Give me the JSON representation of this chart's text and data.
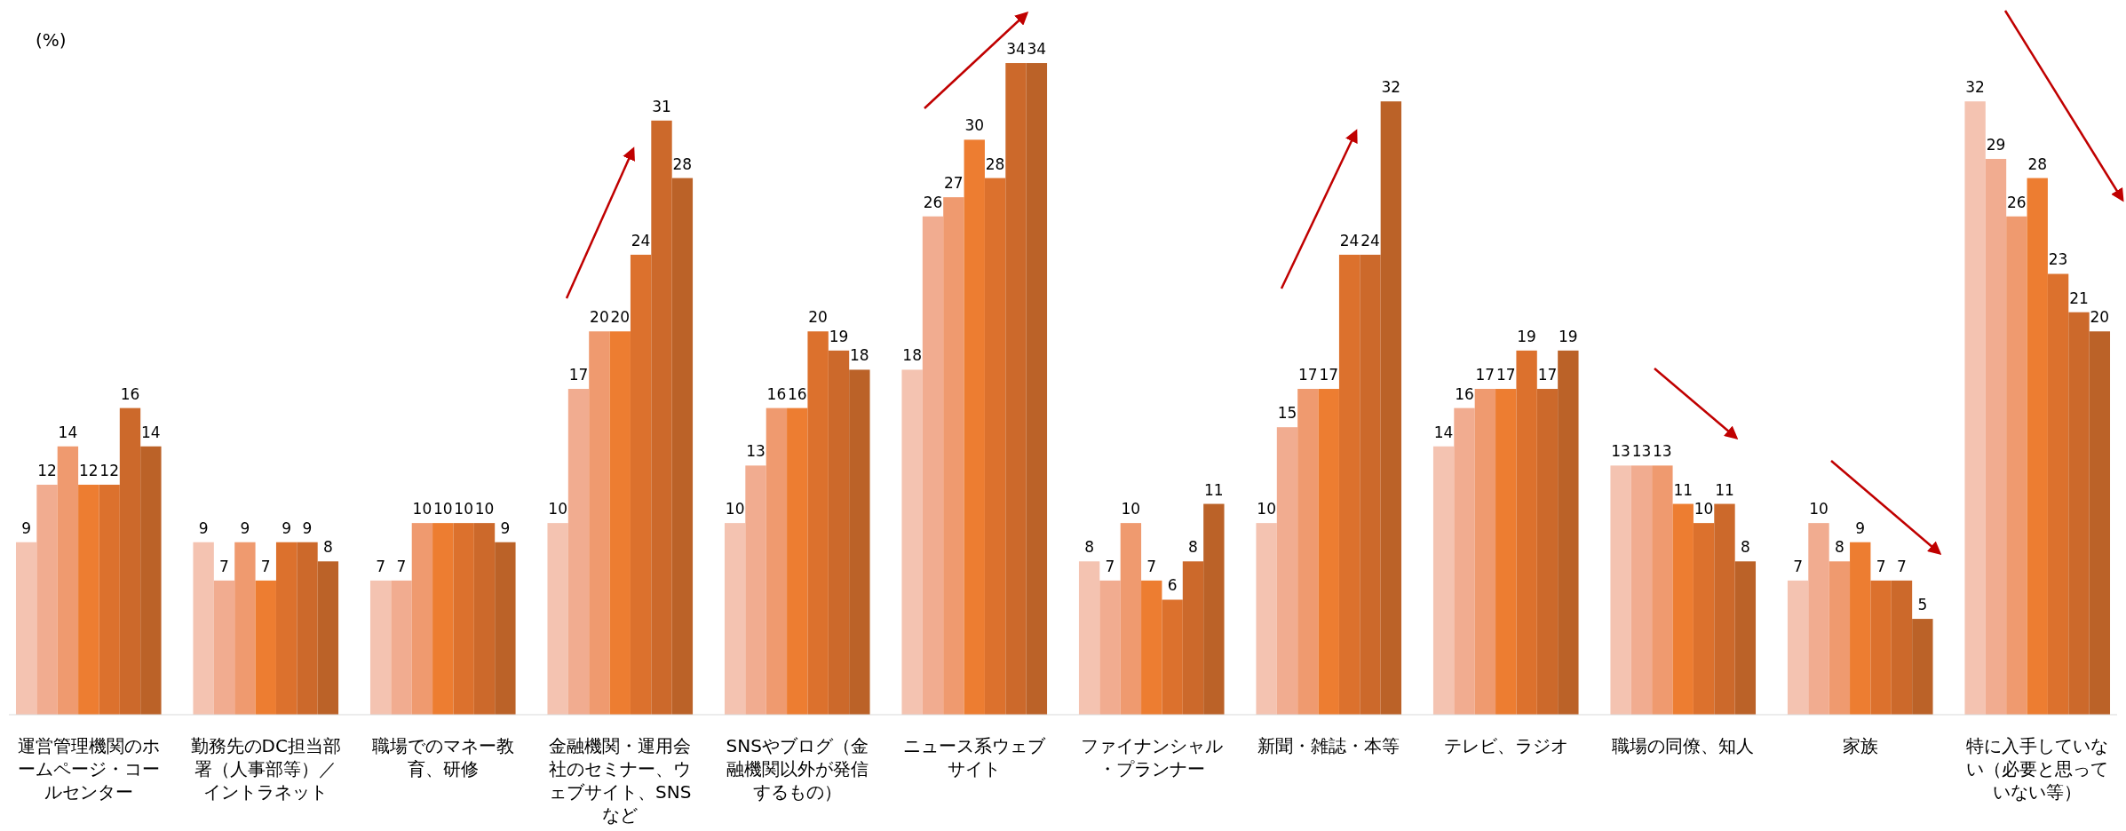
{
  "chart_data": {
    "type": "bar",
    "ylabel": "(%)",
    "categories": [
      "運営管理機関のホームページ・コールセンター",
      "勤務先のDC担当部署（人事部等）／イントラネット",
      "職場でのマネー教育、研修",
      "金融機関・運用会社のセミナー、ウェブサイト、SNSなど",
      "SNSやブログ（金融機関以外が発信するもの）",
      "ニュース系ウェブサイト",
      "ファイナンシャル・プランナー",
      "新聞・雑誌・本等",
      "テレビ、ラジオ",
      "職場の同僚、知人",
      "家族",
      "特に入手していない（必要と思っていない等）"
    ],
    "series": [
      {
        "color": "#f4c3b1",
        "values": [
          9,
          9,
          7,
          10,
          10,
          18,
          8,
          10,
          14,
          13,
          7,
          32
        ]
      },
      {
        "color": "#f1ac90",
        "values": [
          12,
          7,
          7,
          17,
          13,
          26,
          7,
          15,
          16,
          13,
          10,
          29
        ]
      },
      {
        "color": "#ef9a6f",
        "values": [
          14,
          9,
          10,
          20,
          16,
          27,
          10,
          17,
          17,
          13,
          8,
          26
        ]
      },
      {
        "color": "#ed7d31",
        "values": [
          12,
          7,
          10,
          20,
          16,
          30,
          7,
          17,
          17,
          11,
          9,
          28
        ]
      },
      {
        "color": "#dc712d",
        "values": [
          12,
          9,
          10,
          24,
          20,
          28,
          6,
          24,
          19,
          10,
          7,
          23
        ]
      },
      {
        "color": "#cc692b",
        "values": [
          16,
          9,
          10,
          31,
          19,
          34,
          8,
          24,
          17,
          11,
          7,
          21
        ]
      },
      {
        "color": "#bb6228",
        "values": [
          14,
          8,
          9,
          28,
          18,
          34,
          11,
          32,
          19,
          8,
          5,
          20
        ]
      }
    ],
    "data_labels": true,
    "tick_labels": "x"
  }
}
